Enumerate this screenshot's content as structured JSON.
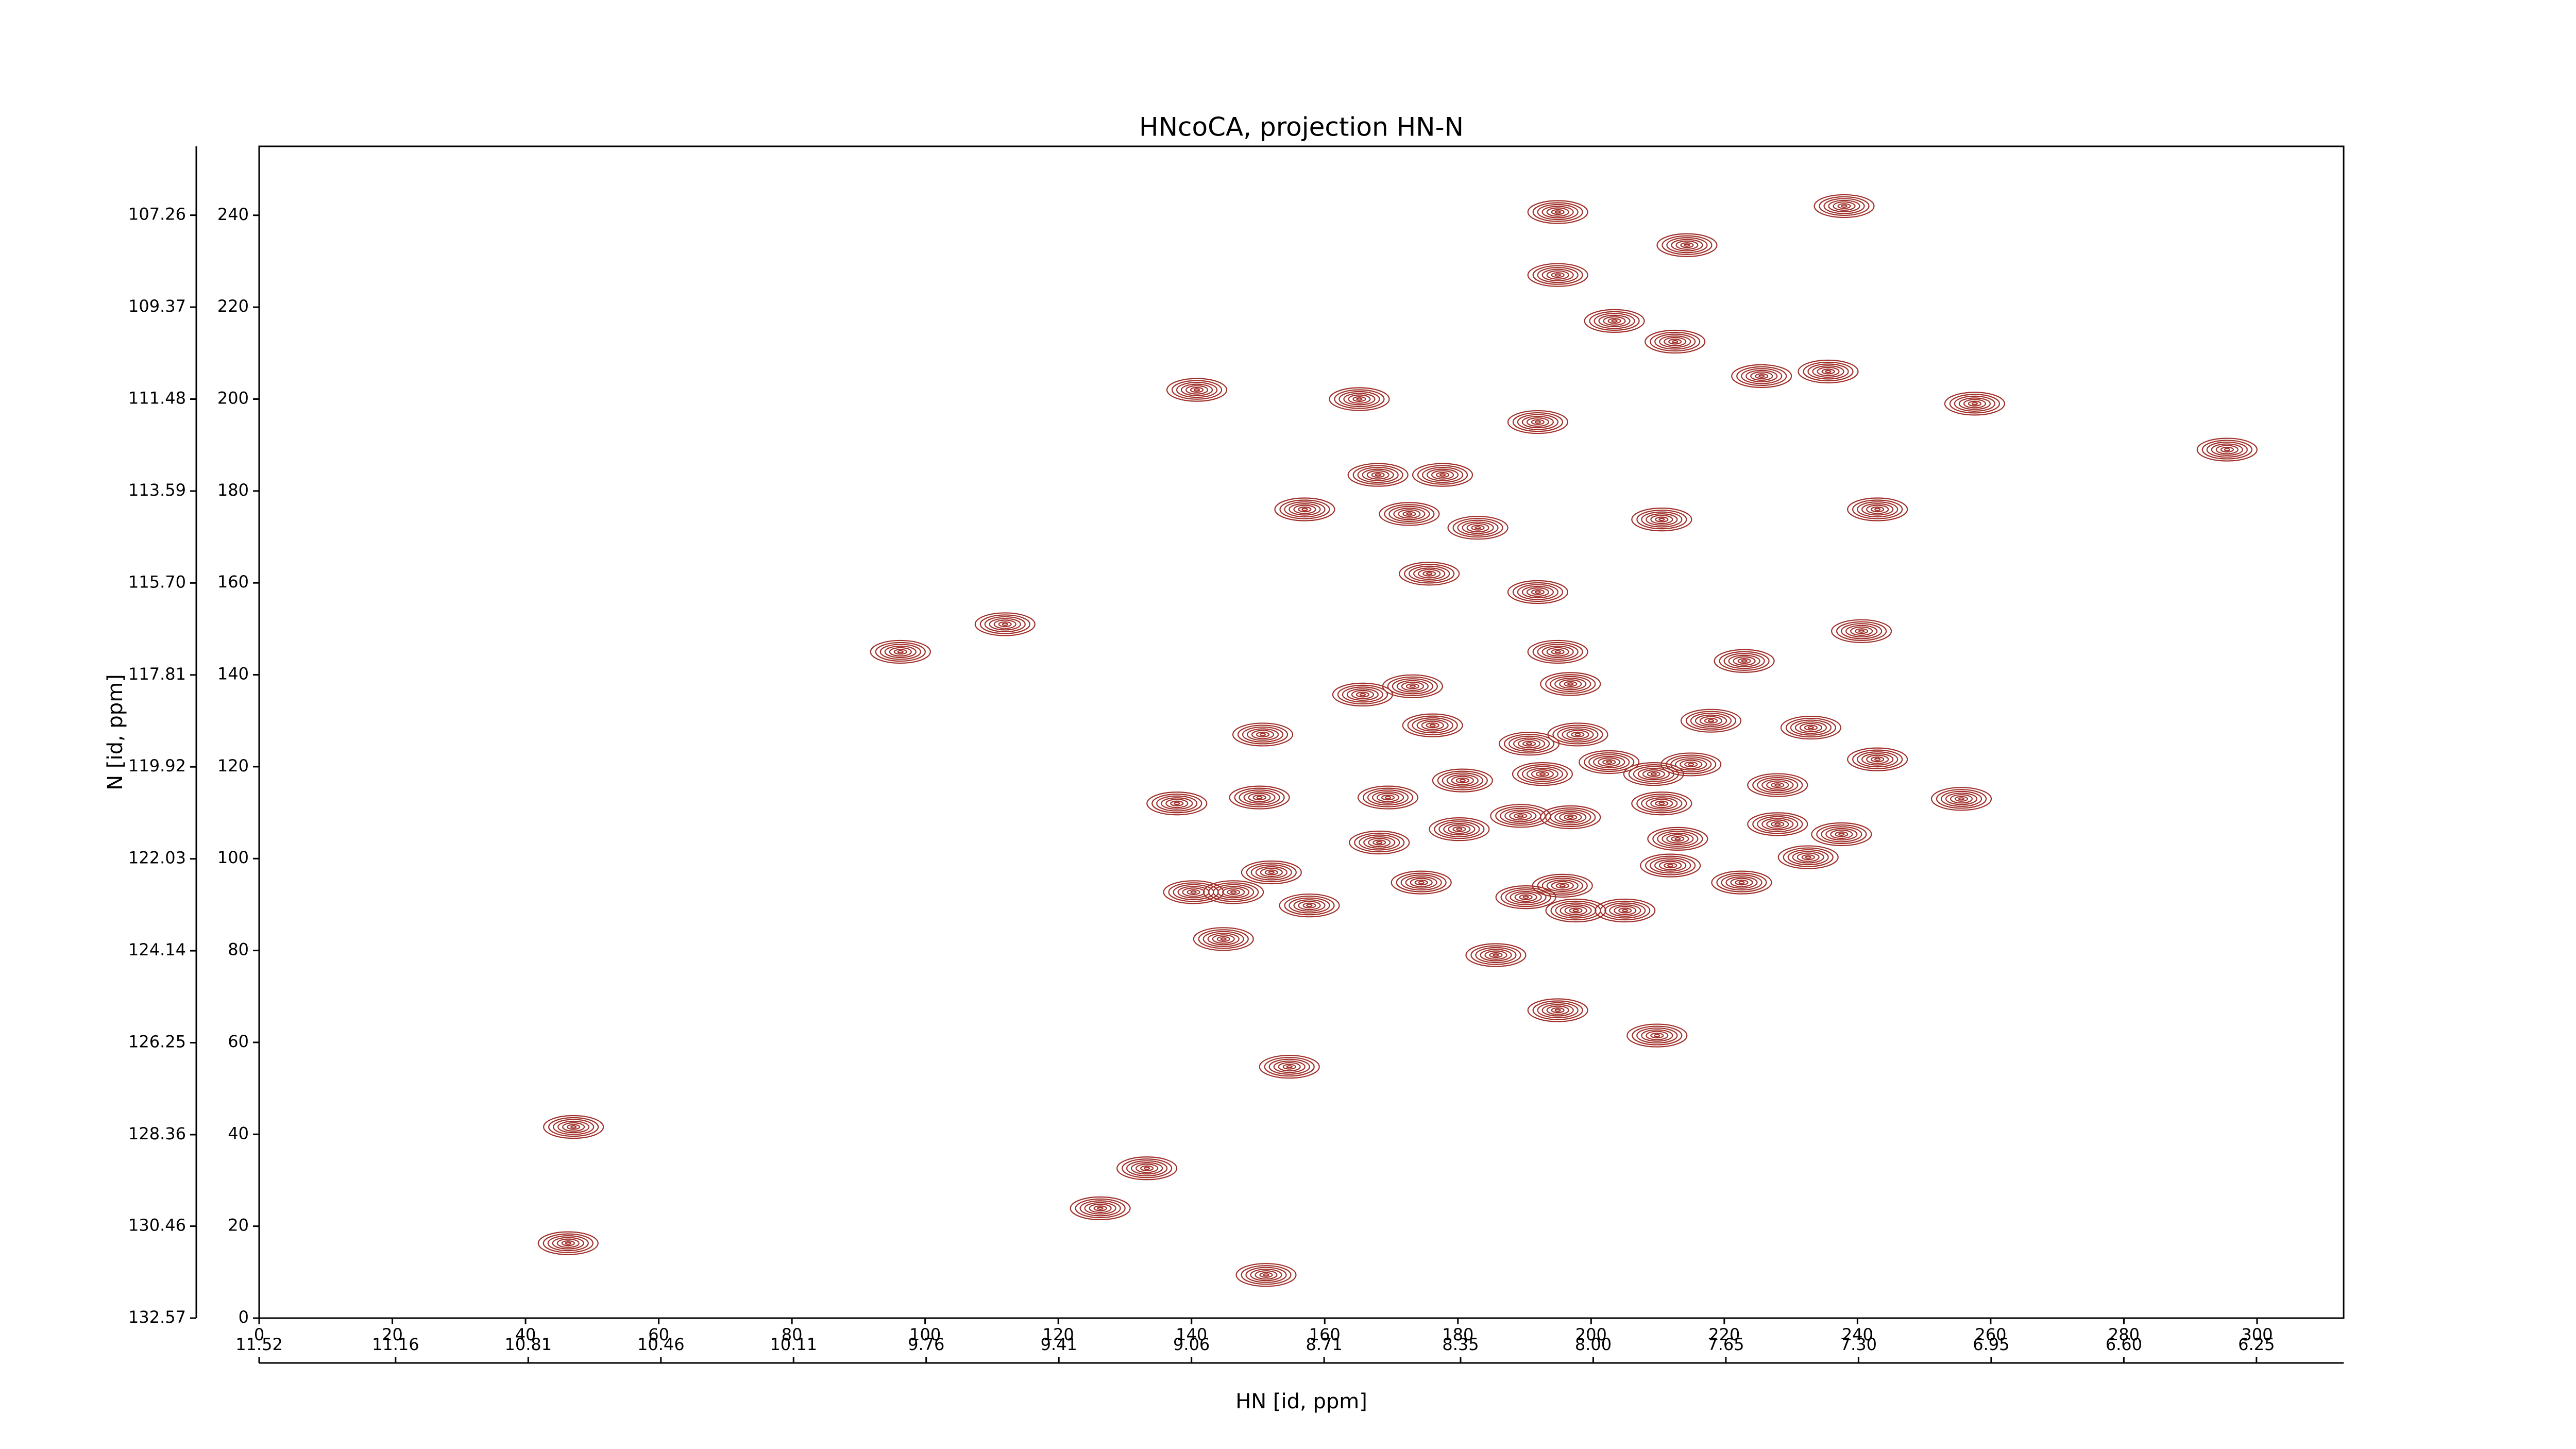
{
  "chart_data": {
    "type": "contour",
    "title": "HNcoCA, projection HN-N",
    "xlabel": "HN [id, ppm]",
    "ylabel": "N [id, ppm]",
    "color": "#a0302a",
    "xlim": [
      0,
      313
    ],
    "ylim": [
      0,
      255
    ],
    "xticks": [
      0,
      20,
      40,
      60,
      80,
      100,
      120,
      140,
      160,
      180,
      200,
      220,
      240,
      260,
      280,
      300
    ],
    "yticks": [
      0,
      20,
      40,
      60,
      80,
      100,
      120,
      140,
      160,
      180,
      200,
      220,
      240
    ],
    "x2lim": [
      11.52,
      6.02
    ],
    "x2ticks": [
      11.52,
      11.16,
      10.81,
      10.46,
      10.11,
      9.76,
      9.41,
      9.06,
      8.71,
      8.35,
      {
        "value": 8,
        "label": "8.00"
      },
      7.65,
      {
        "value": 7.3,
        "label": "7.30"
      },
      6.95,
      {
        "value": 6.6,
        "label": "6.60"
      },
      6.25
    ],
    "y2lim": [
      132.57,
      105.68
    ],
    "y2ticks": [
      132.57,
      130.46,
      128.36,
      126.25,
      124.14,
      122.03,
      119.92,
      117.81,
      {
        "value": 115.7,
        "label": "115.70"
      },
      113.59,
      111.48,
      109.37,
      107.26
    ],
    "x": [
      195,
      195,
      203.5,
      212.6,
      214.4,
      238,
      235.6,
      225.6,
      140.8,
      165.2,
      192,
      295.5,
      257.6,
      168,
      177.7,
      157,
      172.7,
      183,
      210.6,
      243,
      175.7,
      192,
      112,
      96.3,
      240.6,
      223,
      195,
      165.7,
      173.2,
      176.2,
      150.7,
      196.9,
      218,
      233,
      243,
      198,
      190.7,
      202.7,
      215,
      209.4,
      192.7,
      180.7,
      228,
      255.6,
      137.8,
      150.2,
      169.5,
      210.6,
      196.9,
      189.4,
      180.2,
      228,
      237.6,
      213,
      168.2,
      232.6,
      211.9,
      174.5,
      222.6,
      195.7,
      190.2,
      197.7,
      205.1,
      140.3,
      146.3,
      157.7,
      152,
      144.8,
      185.7,
      195,
      209.9,
      154.7,
      47.2,
      133.3,
      126.3,
      46.4,
      151.2
    ],
    "values": [
      240.7,
      227,
      217,
      212.5,
      233.5,
      242,
      206,
      205,
      202,
      200,
      195,
      189,
      199,
      183.5,
      183.5,
      176,
      175,
      172,
      173.8,
      176,
      162,
      158,
      151,
      145,
      149.5,
      143,
      145,
      135.7,
      137.5,
      129,
      127,
      138,
      130,
      128.5,
      121.6,
      127,
      125,
      121,
      120.5,
      118.4,
      118.4,
      117,
      116,
      113,
      112,
      113.3,
      113.3,
      112,
      109,
      109.3,
      106.4,
      107.5,
      105.3,
      104.3,
      103.5,
      100.3,
      98.5,
      94.8,
      94.8,
      94.1,
      91.6,
      88.7,
      88.7,
      92.7,
      92.7,
      89.8,
      97,
      82.5,
      79,
      67,
      61.5,
      54.7,
      41.6,
      32.6,
      23.9,
      16.3,
      9.4
    ]
  }
}
